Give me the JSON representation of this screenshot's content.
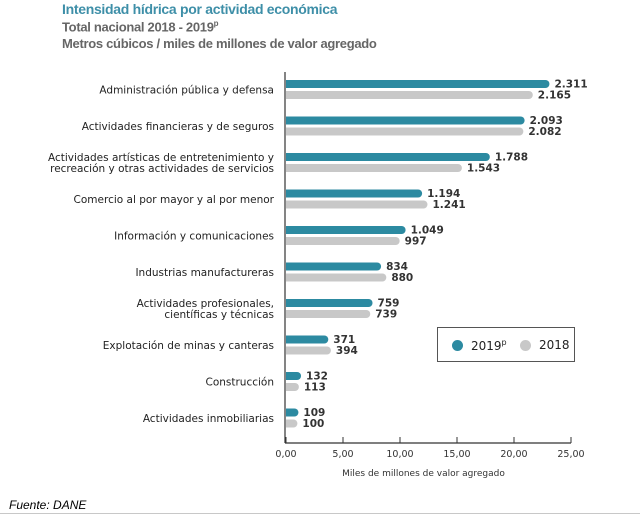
{
  "header": {
    "title": "Intensidad hídrica por actividad económica",
    "subtitle_main": "Total nacional 2018 - 2019",
    "subtitle_sup": "p",
    "units": "Metros cúbicos / miles de millones de valor agregado"
  },
  "source": "Fuente: DANE",
  "colors": {
    "series_2019": "#2c8aa1",
    "series_2018": "#c8c8c8",
    "title": "#3e8fa8"
  },
  "chart_data": {
    "type": "bar",
    "orientation": "horizontal",
    "title": "Intensidad hídrica por actividad económica",
    "subtitle": "Total nacional 2018 - 2019p; Metros cúbicos / miles de millones de valor agregado",
    "xlabel": "Miles de millones de valor agregado",
    "ylabel": "",
    "xlim": [
      0,
      25
    ],
    "xticks": [
      0,
      5,
      10,
      15,
      20,
      25
    ],
    "xtick_labels": [
      "0,00",
      "5,00",
      "10,00",
      "15,00",
      "20,00",
      "25,00"
    ],
    "grid": false,
    "legend_position": "bottom-right",
    "categories": [
      [
        "Administración pública y defensa"
      ],
      [
        "Actividades financieras y de seguros"
      ],
      [
        "Actividades artísticas de entretenimiento y",
        "recreación y otras actividades de servicios"
      ],
      [
        "Comercio al por mayor y al por menor"
      ],
      [
        "Información y comunicaciones"
      ],
      [
        "Industrias manufactureras"
      ],
      [
        "Actividades profesionales,",
        "científicas y técnicas"
      ],
      [
        "Explotación de minas y canteras"
      ],
      [
        "Construcción"
      ],
      [
        "Actividades inmobiliarias"
      ]
    ],
    "series": [
      {
        "name": "2019p",
        "legend_label": "2019",
        "legend_sup": "p",
        "color": "#2c8aa1",
        "values": [
          23.11,
          20.93,
          17.88,
          11.94,
          10.49,
          8.34,
          7.59,
          3.71,
          1.32,
          1.09
        ],
        "labels": [
          "2.311",
          "2.093",
          "1.788",
          "1.194",
          "1.049",
          "834",
          "759",
          "371",
          "132",
          "109"
        ]
      },
      {
        "name": "2018",
        "legend_label": "2018",
        "color": "#c8c8c8",
        "values": [
          21.65,
          20.82,
          15.43,
          12.41,
          9.97,
          8.8,
          7.39,
          3.94,
          1.13,
          1.0
        ],
        "labels": [
          "2.165",
          "2.082",
          "1.543",
          "1.241",
          "997",
          "880",
          "739",
          "394",
          "113",
          "100"
        ]
      }
    ]
  }
}
